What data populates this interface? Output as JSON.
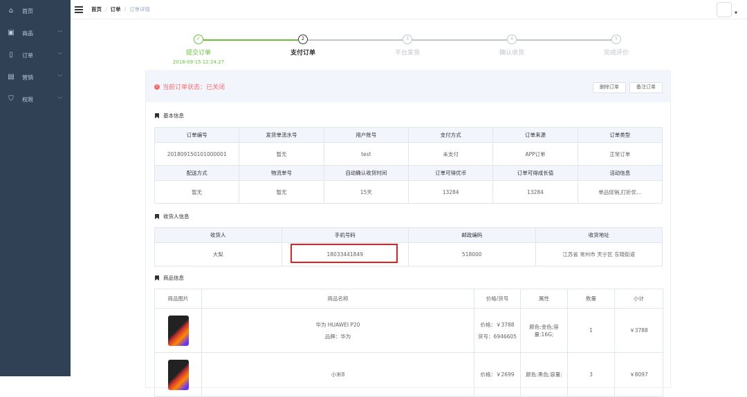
{
  "sidebar": {
    "items": [
      {
        "label": "首页",
        "icon": "home-icon"
      },
      {
        "label": "商品",
        "icon": "shopping-bag-icon"
      },
      {
        "label": "订单",
        "icon": "clipboard-icon"
      },
      {
        "label": "营销",
        "icon": "marketing-icon"
      },
      {
        "label": "权限",
        "icon": "shield-icon"
      }
    ]
  },
  "header": {
    "breadcrumb": [
      "首页",
      "订单",
      "订单详情"
    ]
  },
  "steps": [
    {
      "num": "✓",
      "title": "提交订单",
      "desc": "2018-09-15 12:24:27",
      "state": "done"
    },
    {
      "num": "2",
      "title": "支付订单",
      "state": "current"
    },
    {
      "num": "3",
      "title": "平台发货",
      "state": "wait"
    },
    {
      "num": "4",
      "title": "确认收货",
      "state": "wait"
    },
    {
      "num": "5",
      "title": "完成评价",
      "state": "wait"
    }
  ],
  "status": {
    "text": "当前订单状态：已关闭",
    "delete_label": "删除订单",
    "remark_label": "备注订单"
  },
  "basic": {
    "title": "基本信息",
    "headers1": [
      "订单编号",
      "发货单流水号",
      "用户账号",
      "支付方式",
      "订单来源",
      "订单类型"
    ],
    "values1": [
      "201809150101000001",
      "暂无",
      "test",
      "未支付",
      "APP订单",
      "正常订单"
    ],
    "headers2": [
      "配送方式",
      "物流单号",
      "自动确认收货时间",
      "订单可得优币",
      "订单可得成长值",
      "活动信息"
    ],
    "values2": [
      "暂无",
      "暂无",
      "15天",
      "13284",
      "13284",
      "单品促销,打折优..."
    ]
  },
  "receiver": {
    "title": "收货人信息",
    "headers": [
      "收货人",
      "手机号码",
      "邮政编码",
      "收货地址"
    ],
    "values": [
      "大梨",
      "18033441849",
      "518000",
      "江苏省 常州市 天宁区 东晓街道"
    ]
  },
  "goods": {
    "title": "商品信息",
    "headers": [
      "商品图片",
      "商品名称",
      "价格/货号",
      "属性",
      "数量",
      "小计"
    ],
    "rows": [
      {
        "name": "华为 HUAWEI P20",
        "brand": "品牌：华为",
        "price": "价格：￥3788",
        "sn": "货号：6946605",
        "attr": "颜色:金色;容量:16G;",
        "qty": "1",
        "subtotal": "￥3788"
      },
      {
        "name": "小米8",
        "price": "价格：￥2699",
        "attr": "颜色:黑色;容量:",
        "qty": "3",
        "subtotal": "￥8097"
      }
    ]
  },
  "colors": {
    "sidebar": "#304156",
    "success": "#67c23a",
    "danger": "#f56c6c",
    "highlight": "#e02020"
  }
}
